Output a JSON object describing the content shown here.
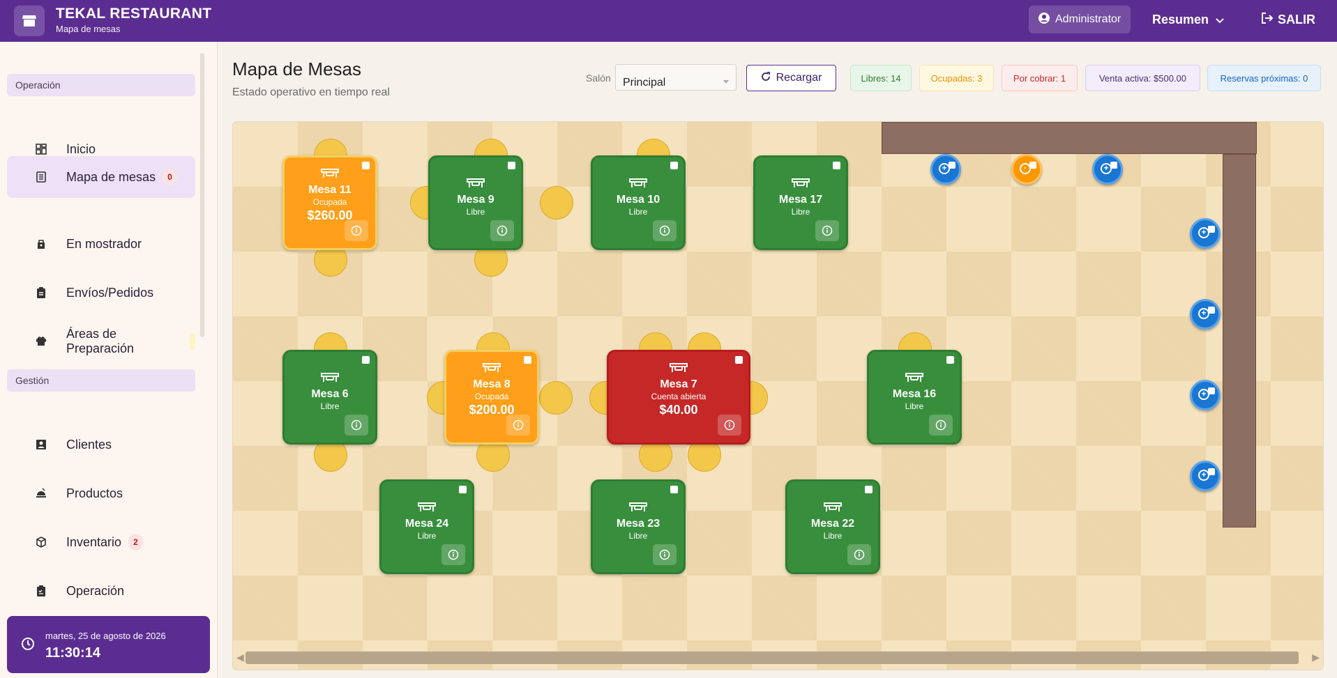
{
  "app": {
    "name": "TEKAL RESTAURANT",
    "subtitle": "Mapa de mesas"
  },
  "topbar": {
    "user": "Administrator",
    "resumen": "Resumen",
    "salir": "SALIR"
  },
  "sidebar": {
    "section1": "Operación",
    "section2": "Gestión",
    "items": [
      {
        "label": "Inicio",
        "icon": "dashboard-icon"
      },
      {
        "label": "Mapa de mesas",
        "icon": "table-map-icon",
        "badge": "0"
      },
      {
        "label": "En mostrador",
        "icon": "counter-icon"
      },
      {
        "label": "Envíos/Pedidos",
        "icon": "clipboard-icon"
      },
      {
        "label": "Áreas de Preparación",
        "icon": "chef-hat-icon"
      },
      {
        "label": "Clientes",
        "icon": "contact-icon"
      },
      {
        "label": "Productos",
        "icon": "food-icon"
      },
      {
        "label": "Inventario",
        "icon": "cube-icon",
        "badge": "2"
      },
      {
        "label": "Operación",
        "icon": "checklist-icon"
      }
    ]
  },
  "clock": {
    "date": "martes, 25 de agosto de 2026",
    "time": "11:30:14"
  },
  "header": {
    "title": "Mapa de Mesas",
    "subtitle": "Estado operativo en tiempo real",
    "salon_label": "Salón",
    "salon_value": "Principal",
    "reload": "Recargar"
  },
  "stats": [
    {
      "label": "Libres: 14",
      "color": "#2e7d32",
      "bg": "#e8f5e9",
      "border": "#c8e6c9"
    },
    {
      "label": "Ocupadas: 3",
      "color": "#ef8f00",
      "bg": "#fff8e1",
      "border": "#ffe0b2"
    },
    {
      "label": "Por cobrar: 1",
      "color": "#c62828",
      "bg": "#fdecec",
      "border": "#f8c9c9"
    },
    {
      "label": "Venta activa: $500.00",
      "color": "#4a2f73",
      "bg": "#f3ecfa",
      "border": "#dccbee"
    },
    {
      "label": "Reservas próximas: 0",
      "color": "#1565c0",
      "bg": "#e6f1fc",
      "border": "#c6ddf6"
    }
  ],
  "tables": [
    {
      "name": "Mesa 11",
      "status": "Ocupada",
      "amount": "$260.00",
      "state": "orange"
    },
    {
      "name": "Mesa 9",
      "status": "Libre",
      "state": "green"
    },
    {
      "name": "Mesa 10",
      "status": "Libre",
      "state": "green"
    },
    {
      "name": "Mesa 17",
      "status": "Libre",
      "state": "green"
    },
    {
      "name": "Mesa 6",
      "status": "Libre",
      "state": "green"
    },
    {
      "name": "Mesa 8",
      "status": "Ocupada",
      "amount": "$200.00",
      "state": "orange"
    },
    {
      "name": "Mesa 7",
      "status": "Cuenta abierta",
      "amount": "$40.00",
      "state": "red"
    },
    {
      "name": "Mesa 16",
      "status": "Libre",
      "state": "green"
    },
    {
      "name": "Mesa 24",
      "status": "Libre",
      "state": "green"
    },
    {
      "name": "Mesa 23",
      "status": "Libre",
      "state": "green"
    },
    {
      "name": "Mesa 22",
      "status": "Libre",
      "state": "green"
    }
  ]
}
